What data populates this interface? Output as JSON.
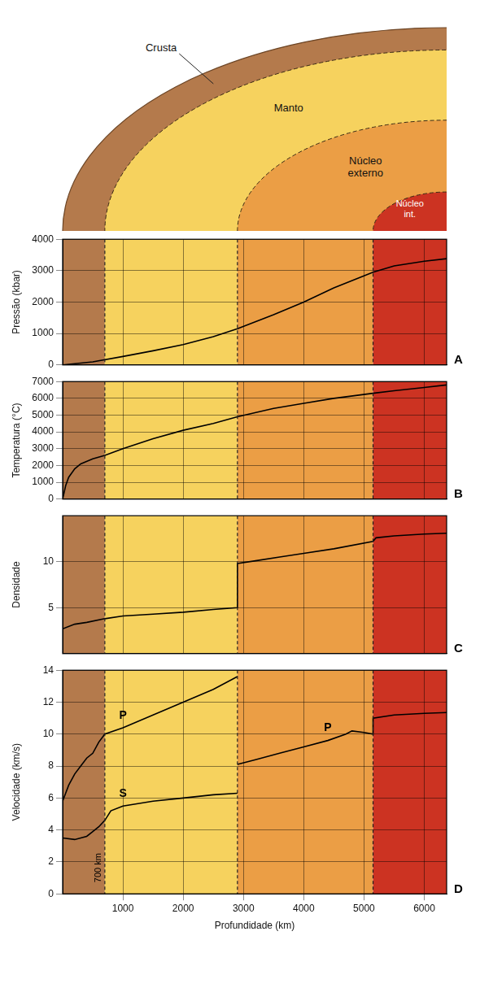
{
  "zones": [
    {
      "label": "Crusta",
      "from": 0,
      "to": 700,
      "color": "#b47a4c"
    },
    {
      "label": "Manto",
      "from": 700,
      "to": 2900,
      "color": "#f6d25e"
    },
    {
      "label": "Núcleo externo",
      "from": 2900,
      "to": 5150,
      "color": "#eb9e45"
    },
    {
      "label": "Núcleo int.",
      "from": 5150,
      "to": 6371,
      "color": "#cc3322"
    }
  ],
  "chart_data": [
    {
      "type": "line",
      "letter": "A",
      "y_label": "Pressão (kbar)",
      "xlim": [
        0,
        6371
      ],
      "xticks": [
        1000,
        2000,
        3000,
        4000,
        5000,
        6000
      ],
      "ylim": [
        0,
        4000
      ],
      "yticks": [
        0,
        1000,
        2000,
        3000,
        4000
      ],
      "grid": true,
      "tick_labels": "y",
      "series": [
        {
          "color": "#000000",
          "x": [
            0,
            500,
            1000,
            1500,
            2000,
            2500,
            2900,
            3500,
            4000,
            4500,
            5150,
            5500,
            6000,
            6371
          ],
          "values": [
            0,
            100,
            270,
            450,
            650,
            900,
            1150,
            1600,
            2000,
            2450,
            2950,
            3150,
            3300,
            3380
          ]
        }
      ]
    },
    {
      "type": "line",
      "letter": "B",
      "y_label": "Temperatura (°C)",
      "xlim": [
        0,
        6371
      ],
      "xticks": [
        1000,
        2000,
        3000,
        4000,
        5000,
        6000
      ],
      "ylim": [
        0,
        7000
      ],
      "yticks": [
        0,
        1000,
        2000,
        3000,
        4000,
        5000,
        6000,
        7000
      ],
      "grid": true,
      "tick_labels": "y",
      "series": [
        {
          "color": "#000000",
          "x": [
            0,
            50,
            100,
            200,
            300,
            500,
            700,
            1000,
            1500,
            2000,
            2500,
            2900,
            3500,
            4000,
            4500,
            5150,
            5500,
            6000,
            6371
          ],
          "values": [
            0,
            800,
            1300,
            1800,
            2100,
            2400,
            2600,
            3000,
            3600,
            4100,
            4500,
            4900,
            5400,
            5700,
            6000,
            6300,
            6450,
            6650,
            6800
          ]
        }
      ]
    },
    {
      "type": "line",
      "letter": "C",
      "y_label": "Densidade",
      "xlim": [
        0,
        6371
      ],
      "xticks": [
        1000,
        2000,
        3000,
        4000,
        5000,
        6000
      ],
      "ylim": [
        0,
        15
      ],
      "yticks": [
        5,
        10
      ],
      "grid": true,
      "tick_labels": "y",
      "series": [
        {
          "color": "#000000",
          "x": [
            0,
            200,
            400,
            700,
            1000,
            1500,
            2000,
            2500,
            2900,
            2900,
            3200,
            3600,
            4000,
            4500,
            5150,
            5200,
            5500,
            6000,
            6371
          ],
          "values": [
            2.7,
            3.2,
            3.4,
            3.8,
            4.1,
            4.3,
            4.5,
            4.8,
            5.0,
            9.8,
            10.1,
            10.5,
            10.9,
            11.4,
            12.2,
            12.6,
            12.8,
            13.0,
            13.1
          ]
        }
      ]
    },
    {
      "type": "line",
      "letter": "D",
      "y_label": "Velocidade (km/s)",
      "x_label": "Profundidade (km)",
      "xlim": [
        0,
        6371
      ],
      "xticks": [
        1000,
        2000,
        3000,
        4000,
        5000,
        6000
      ],
      "ylim": [
        0,
        14
      ],
      "yticks": [
        0,
        2,
        4,
        6,
        8,
        10,
        12,
        14
      ],
      "grid": true,
      "annotations": [
        {
          "text": "700 km",
          "x": 700
        }
      ],
      "series": [
        {
          "name": "P",
          "color": "#000000",
          "x": [
            0,
            100,
            200,
            300,
            400,
            500,
            600,
            700,
            1000,
            1500,
            2000,
            2500,
            2900
          ],
          "values": [
            5.8,
            6.8,
            7.5,
            8.0,
            8.5,
            8.8,
            9.5,
            10.0,
            10.4,
            11.2,
            12.0,
            12.8,
            13.6
          ]
        },
        {
          "name": "P",
          "color": "#000000",
          "x": [
            2900,
            3200,
            3600,
            4000,
            4400,
            4700,
            4800,
            5000,
            5150,
            5150,
            5500,
            6000,
            6371
          ],
          "values": [
            8.1,
            8.4,
            8.8,
            9.2,
            9.6,
            10.0,
            10.2,
            10.1,
            10.0,
            11.0,
            11.2,
            11.3,
            11.35
          ]
        },
        {
          "name": "S",
          "color": "#000000",
          "x": [
            0,
            200,
            400,
            500,
            600,
            700,
            800,
            1000,
            1500,
            2000,
            2500,
            2900
          ],
          "values": [
            3.5,
            3.4,
            3.6,
            3.9,
            4.2,
            4.6,
            5.2,
            5.5,
            5.8,
            6.0,
            6.2,
            6.3
          ]
        }
      ]
    }
  ]
}
